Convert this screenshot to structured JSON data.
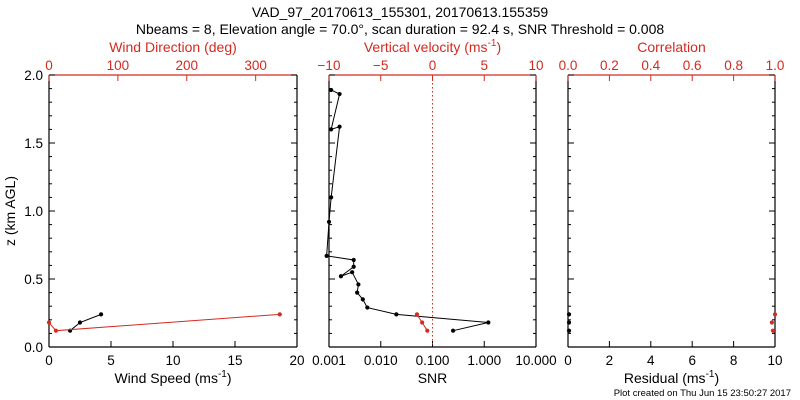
{
  "header": {
    "line1": "VAD_97_20170613_155301, 20170613.155359",
    "line2": "Nbeams = 8, Elevation angle = 70.0°, scan duration = 92.4 s, SNR Threshold = 0.008"
  },
  "footer": {
    "created": "Plot created on Thu Jun 15 23:50:27 2017"
  },
  "colors": {
    "axis": "#000000",
    "accent": "#d42a20",
    "background": "#ffffff"
  },
  "chart_data": [
    {
      "type": "line",
      "ylabel": "z (km AGL)",
      "ylim": [
        0,
        2.0
      ],
      "y_ticks": [
        "0.0",
        "0.5",
        "1.0",
        "1.5",
        "2.0"
      ],
      "xlabel": "Wind Speed (ms",
      "xlabel_sup": "-1",
      "xlabel_end": ")",
      "xlim": [
        0,
        20
      ],
      "x_ticks": [
        "0",
        "5",
        "10",
        "15",
        "20"
      ],
      "top_label": "Wind Direction (deg)",
      "top_lim": [
        0,
        360
      ],
      "top_ticks": [
        "0",
        "100",
        "200",
        "300"
      ],
      "series": [
        {
          "axis": "bottom",
          "color": "#000000",
          "x": [
            4.2,
            2.5,
            1.7
          ],
          "y": [
            0.24,
            0.18,
            0.12
          ]
        },
        {
          "axis": "top",
          "color": "#d42a20",
          "x": [
            335,
            10,
            0
          ],
          "y": [
            0.24,
            0.12,
            0.18
          ]
        }
      ]
    },
    {
      "type": "line",
      "xlabel": "SNR",
      "xscale": "log",
      "xlim": [
        0.001,
        10.0
      ],
      "x_ticks": [
        "0.001",
        "0.010",
        "0.100",
        "1.000",
        "10.000"
      ],
      "top_label": "Vertical velocity (ms",
      "top_label_sup": "-1",
      "top_label_end": ")",
      "top_lim": [
        -10,
        10
      ],
      "top_ticks": [
        "−10",
        "−5",
        "0",
        "5",
        "10"
      ],
      "reference_line": {
        "axis": "top",
        "value": 0,
        "style": "dotted",
        "color": "#d42a20"
      },
      "series": [
        {
          "axis": "bottom",
          "color": "#000000",
          "x": [
            0.0011,
            0.0016,
            0.0011,
            0.0016,
            0.0011,
            0.001,
            0.0009,
            0.003,
            0.003,
            0.0017,
            0.0028,
            0.0037,
            0.0035,
            0.0045,
            0.0055,
            0.02,
            1.2,
            0.25
          ],
          "y": [
            1.89,
            1.86,
            1.6,
            1.62,
            1.1,
            0.92,
            0.67,
            0.64,
            0.59,
            0.52,
            0.55,
            0.46,
            0.4,
            0.35,
            0.29,
            0.24,
            0.18,
            0.12
          ]
        },
        {
          "axis": "top",
          "color": "#d42a20",
          "x": [
            -1.5,
            -1.0,
            -0.5
          ],
          "y": [
            0.24,
            0.18,
            0.12
          ]
        }
      ]
    },
    {
      "type": "scatter",
      "xlabel": "Residual (ms",
      "xlabel_sup": "-1",
      "xlabel_end": ")",
      "xlim": [
        0,
        10
      ],
      "x_ticks": [
        "0",
        "2",
        "4",
        "6",
        "8",
        "10"
      ],
      "top_label": "Correlation",
      "top_lim": [
        0,
        1.0
      ],
      "top_ticks": [
        "0.0",
        "0.2",
        "0.4",
        "0.6",
        "0.8",
        "1.0"
      ],
      "series": [
        {
          "axis": "bottom",
          "color": "#000000",
          "x": [
            0.05,
            0.05,
            0.05
          ],
          "y": [
            0.24,
            0.18,
            0.12
          ]
        },
        {
          "axis": "top",
          "color": "#d42a20",
          "x": [
            1.0,
            0.985,
            0.99
          ],
          "y": [
            0.24,
            0.18,
            0.12
          ]
        }
      ]
    }
  ]
}
